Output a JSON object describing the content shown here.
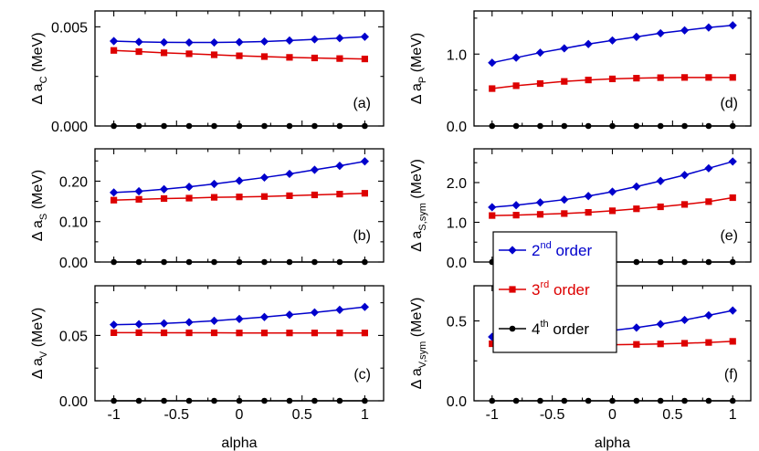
{
  "chart_data": [
    {
      "type": "line",
      "panel_label": "(a)",
      "ylabel": {
        "delta": "Δ",
        "var": "a",
        "sub": "C",
        "unit": " (MeV)"
      },
      "xlabel": "",
      "ylim": [
        0,
        0.0058
      ],
      "yticks": [
        0,
        0.005
      ],
      "yticklabels": [
        "0.000",
        "0.005"
      ],
      "x": [
        -1,
        -0.8,
        -0.6,
        -0.4,
        -0.2,
        0,
        0.2,
        0.4,
        0.6,
        0.8,
        1
      ],
      "series": [
        {
          "key": "2nd",
          "values": [
            0.00428,
            0.00424,
            0.00422,
            0.00421,
            0.00421,
            0.00423,
            0.00426,
            0.00431,
            0.00437,
            0.00443,
            0.0045
          ]
        },
        {
          "key": "3rd",
          "values": [
            0.00381,
            0.00375,
            0.00369,
            0.00364,
            0.00359,
            0.00354,
            0.0035,
            0.00346,
            0.00343,
            0.0034,
            0.00338
          ]
        },
        {
          "key": "4th",
          "values": [
            0,
            0,
            0,
            0,
            0,
            0,
            0,
            0,
            0,
            0,
            0
          ]
        }
      ]
    },
    {
      "type": "line",
      "panel_label": "(b)",
      "ylabel": {
        "delta": "Δ",
        "var": "a",
        "sub": "S",
        "unit": " (MeV)"
      },
      "xlabel": "",
      "ylim": [
        0,
        0.28
      ],
      "yticks": [
        0,
        0.1,
        0.2
      ],
      "yticklabels": [
        "0.00",
        "0.10",
        "0.20"
      ],
      "x": [
        -1,
        -0.8,
        -0.6,
        -0.4,
        -0.2,
        0,
        0.2,
        0.4,
        0.6,
        0.8,
        1
      ],
      "series": [
        {
          "key": "2nd",
          "values": [
            0.172,
            0.175,
            0.18,
            0.186,
            0.193,
            0.201,
            0.209,
            0.218,
            0.228,
            0.238,
            0.249
          ]
        },
        {
          "key": "3rd",
          "values": [
            0.153,
            0.155,
            0.157,
            0.158,
            0.16,
            0.161,
            0.162,
            0.164,
            0.166,
            0.168,
            0.17
          ]
        },
        {
          "key": "4th",
          "values": [
            0,
            0,
            0,
            0,
            0,
            0,
            0,
            0,
            0,
            0,
            0
          ]
        }
      ]
    },
    {
      "type": "line",
      "panel_label": "(c)",
      "ylabel": {
        "delta": "Δ",
        "var": "a",
        "sub": "V",
        "unit": " (MeV)"
      },
      "xlabel": "alpha",
      "ylim": [
        0,
        0.088
      ],
      "yticks": [
        0,
        0.05
      ],
      "yticklabels": [
        "0.00",
        "0.05"
      ],
      "x": [
        -1,
        -0.8,
        -0.6,
        -0.4,
        -0.2,
        0,
        0.2,
        0.4,
        0.6,
        0.8,
        1
      ],
      "xticklabels": [
        "-1",
        "-0.5",
        "0",
        "0.5",
        "1"
      ],
      "xticks": [
        -1,
        -0.5,
        0,
        0.5,
        1
      ],
      "series": [
        {
          "key": "2nd",
          "values": [
            0.0582,
            0.0586,
            0.0592,
            0.0601,
            0.0612,
            0.0626,
            0.0641,
            0.0658,
            0.0676,
            0.0696,
            0.0718
          ]
        },
        {
          "key": "3rd",
          "values": [
            0.0521,
            0.0521,
            0.052,
            0.052,
            0.052,
            0.0519,
            0.0519,
            0.0519,
            0.0519,
            0.0519,
            0.0519
          ]
        },
        {
          "key": "4th",
          "values": [
            0,
            0,
            0,
            0,
            0,
            0,
            0,
            0,
            0,
            0,
            0
          ]
        }
      ]
    },
    {
      "type": "line",
      "panel_label": "(d)",
      "ylabel": {
        "delta": "Δ",
        "var": "a",
        "sub": "P",
        "unit": " (MeV)"
      },
      "xlabel": "",
      "ylim": [
        0,
        1.6
      ],
      "yticks": [
        0,
        1.0
      ],
      "yticklabels": [
        "0.0",
        "1.0"
      ],
      "x": [
        -1,
        -0.8,
        -0.6,
        -0.4,
        -0.2,
        0,
        0.2,
        0.4,
        0.6,
        0.8,
        1
      ],
      "series": [
        {
          "key": "2nd",
          "values": [
            0.88,
            0.95,
            1.02,
            1.08,
            1.14,
            1.19,
            1.24,
            1.29,
            1.33,
            1.37,
            1.4
          ]
        },
        {
          "key": "3rd",
          "values": [
            0.52,
            0.56,
            0.59,
            0.62,
            0.64,
            0.655,
            0.665,
            0.672,
            0.675,
            0.675,
            0.675
          ]
        },
        {
          "key": "4th",
          "values": [
            0,
            0,
            0,
            0,
            0,
            0,
            0,
            0,
            0,
            0,
            0
          ]
        }
      ]
    },
    {
      "type": "line",
      "panel_label": "(e)",
      "ylabel": {
        "delta": "Δ",
        "var": "a",
        "sub": "S,sym",
        "unit": " (MeV)"
      },
      "xlabel": "",
      "ylim": [
        0,
        2.85
      ],
      "yticks": [
        0,
        1.0,
        2.0
      ],
      "yticklabels": [
        "0.0",
        "1.0",
        "2.0"
      ],
      "x": [
        -1,
        -0.8,
        -0.6,
        -0.4,
        -0.2,
        0,
        0.2,
        0.4,
        0.6,
        0.8,
        1
      ],
      "series": [
        {
          "key": "2nd",
          "values": [
            1.38,
            1.43,
            1.5,
            1.57,
            1.66,
            1.77,
            1.9,
            2.04,
            2.19,
            2.36,
            2.53
          ]
        },
        {
          "key": "3rd",
          "values": [
            1.17,
            1.18,
            1.2,
            1.22,
            1.25,
            1.29,
            1.34,
            1.39,
            1.45,
            1.52,
            1.62
          ]
        },
        {
          "key": "4th",
          "values": [
            0,
            0,
            0,
            0,
            0,
            0,
            0,
            0,
            0,
            0,
            0
          ]
        }
      ]
    },
    {
      "type": "line",
      "panel_label": "(f)",
      "ylabel": {
        "delta": "Δ",
        "var": "a",
        "sub": "V,sym",
        "unit": " (MeV)"
      },
      "xlabel": "alpha",
      "ylim": [
        0,
        0.72
      ],
      "yticks": [
        0,
        0.5
      ],
      "yticklabels": [
        "0.0",
        "0.5"
      ],
      "x": [
        -1,
        -0.8,
        -0.6,
        -0.4,
        -0.2,
        0,
        0.2,
        0.4,
        0.6,
        0.8,
        1
      ],
      "xticklabels": [
        "-1",
        "-0.5",
        "0",
        "0.5",
        "1"
      ],
      "xticks": [
        -1,
        -0.5,
        0,
        0.5,
        1
      ],
      "series": [
        {
          "key": "2nd",
          "values": [
            0.4,
            0.405,
            0.41,
            0.418,
            0.428,
            0.44,
            0.458,
            0.48,
            0.506,
            0.535,
            0.565
          ]
        },
        {
          "key": "3rd",
          "values": [
            0.357,
            0.353,
            0.351,
            0.35,
            0.35,
            0.351,
            0.353,
            0.356,
            0.36,
            0.365,
            0.372
          ]
        },
        {
          "key": "4th",
          "values": [
            0,
            0,
            0,
            0,
            0,
            0,
            0,
            0,
            0,
            0,
            0
          ]
        }
      ]
    }
  ],
  "legend": [
    {
      "key": "2nd",
      "num": "2",
      "sup": "nd",
      "text": " order",
      "color": "#0000cc",
      "marker": "diamond"
    },
    {
      "key": "3rd",
      "num": "3",
      "sup": "rd",
      "text": " order",
      "color": "#dd0000",
      "marker": "square"
    },
    {
      "key": "4th",
      "num": "4",
      "sup": "th",
      "text": " order",
      "color": "#000000",
      "marker": "circle"
    }
  ],
  "colors": {
    "2nd": "#0000cc",
    "3rd": "#dd0000",
    "4th": "#000000"
  }
}
